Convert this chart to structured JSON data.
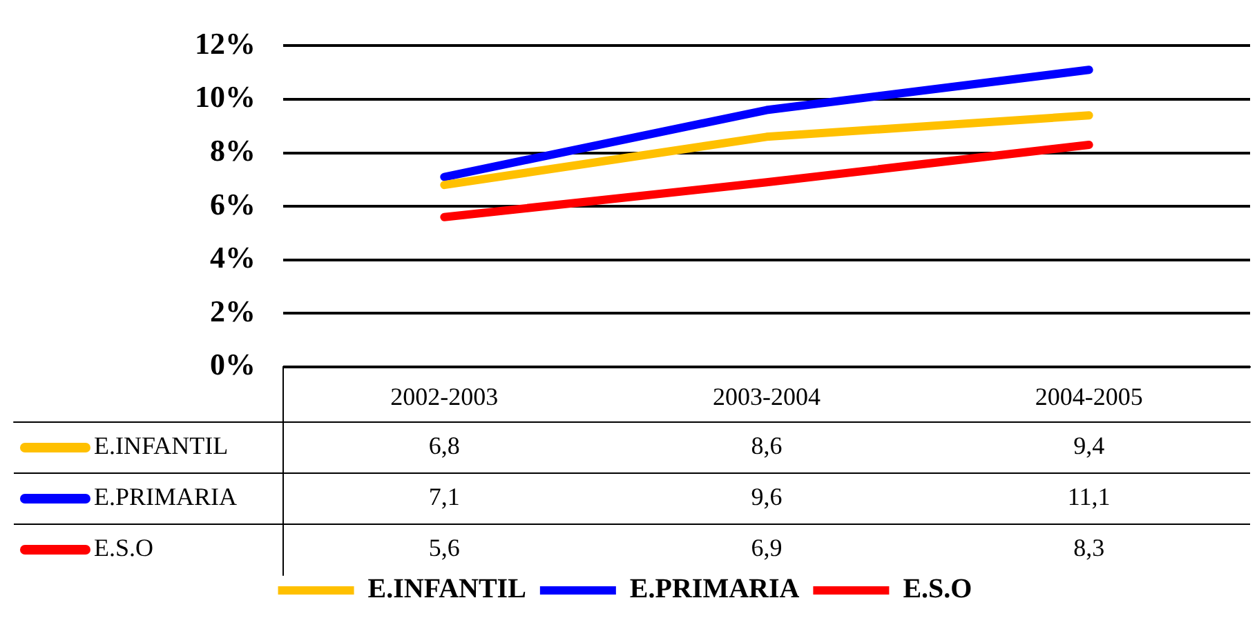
{
  "chart_data": {
    "type": "line",
    "categories": [
      "2002-2003",
      "2003-2004",
      "2004-2005"
    ],
    "series": [
      {
        "name": "E.INFANTIL",
        "color": "#ffc000",
        "values": [
          6.8,
          8.6,
          9.4
        ],
        "value_labels": [
          "6,8",
          "8,6",
          "9,4"
        ]
      },
      {
        "name": "E.PRIMARIA",
        "color": "#0000ff",
        "values": [
          7.1,
          9.6,
          11.1
        ],
        "value_labels": [
          "7,1",
          "9,6",
          "11,1"
        ]
      },
      {
        "name": "E.S.O",
        "color": "#ff0000",
        "values": [
          5.6,
          6.9,
          8.3
        ],
        "value_labels": [
          "5,6",
          "6,9",
          "8,3"
        ]
      }
    ],
    "ylim": [
      0,
      12
    ],
    "yticks": [
      {
        "value": 0,
        "label": "0%"
      },
      {
        "value": 2,
        "label": "2%"
      },
      {
        "value": 4,
        "label": "4%"
      },
      {
        "value": 6,
        "label": "6%"
      },
      {
        "value": 8,
        "label": "8%"
      },
      {
        "value": 10,
        "label": "10%"
      },
      {
        "value": 12,
        "label": "12%"
      }
    ],
    "grid": "y",
    "legend": "bottom",
    "marker": "none",
    "line_style": "solid"
  }
}
